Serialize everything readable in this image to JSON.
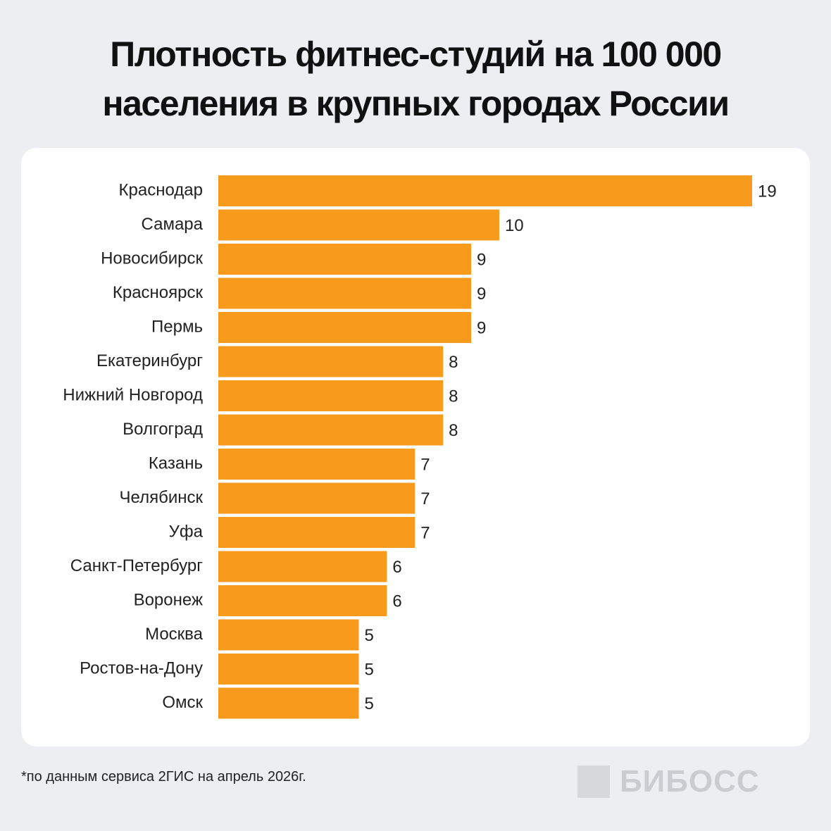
{
  "chart_data": {
    "type": "bar",
    "orientation": "horizontal",
    "title": "Плотность фитнес-студий на 100 000 населения в крупных городах России",
    "categories": [
      "Краснодар",
      "Самара",
      "Новосибирск",
      "Красноярск",
      "Пермь",
      "Екатеринбург",
      "Нижний Новгород",
      "Волгоград",
      "Казань",
      "Челябинск",
      "Уфа",
      "Санкт-Петербург",
      "Воронеж",
      "Москва",
      "Ростов-на-Дону",
      "Омск"
    ],
    "values": [
      19,
      10,
      9,
      9,
      9,
      8,
      8,
      8,
      7,
      7,
      7,
      6,
      6,
      5,
      5,
      5
    ],
    "color": "#f89a1c",
    "footnote": "*по данным сервиса 2ГИС на апрель 2026г.",
    "brand": "БИБОСС"
  }
}
